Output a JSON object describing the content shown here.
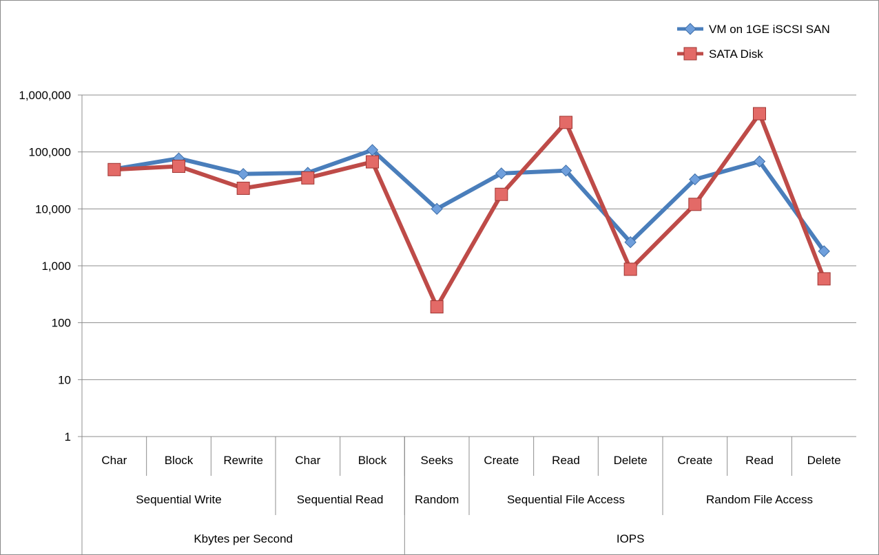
{
  "chart_data": {
    "type": "line",
    "y_scale": "log",
    "ylim": [
      1,
      1000000
    ],
    "y_ticks": [
      "1,000,000",
      "100,000",
      "10,000",
      "1,000",
      "100",
      "10",
      "1"
    ],
    "grid": true,
    "legend_position": "top-right",
    "categories": [
      "Char",
      "Block",
      "Rewrite",
      "Char",
      "Block",
      "Seeks",
      "Create",
      "Read",
      "Delete",
      "Create",
      "Read",
      "Delete"
    ],
    "category_groups": [
      {
        "label": "Sequential Write",
        "span": 3
      },
      {
        "label": "Sequential Read",
        "span": 2
      },
      {
        "label": "Random",
        "span": 1
      },
      {
        "label": "Sequential File Access",
        "span": 3
      },
      {
        "label": "Random File Access",
        "span": 3
      }
    ],
    "category_supergroups": [
      {
        "label": "Kbytes per Second",
        "span": 5
      },
      {
        "label": "IOPS",
        "span": 7
      }
    ],
    "series": [
      {
        "name": "VM on 1GE iSCSI SAN",
        "color": "#4a7ebb",
        "marker": "diamond",
        "values": [
          50000,
          77000,
          41000,
          43000,
          108000,
          10000,
          42000,
          47000,
          2600,
          33000,
          68000,
          1800
        ]
      },
      {
        "name": "SATA Disk",
        "color": "#be4b48",
        "marker": "square",
        "values": [
          49000,
          56000,
          23000,
          35000,
          67000,
          190,
          18000,
          330000,
          870,
          12000,
          470000,
          590
        ]
      }
    ]
  }
}
